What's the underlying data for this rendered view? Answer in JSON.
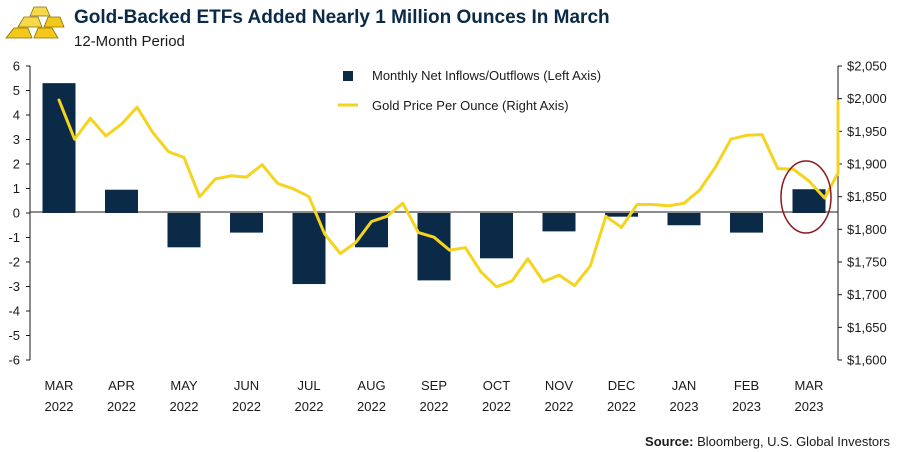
{
  "header": {
    "title": "Gold-Backed ETFs Added Nearly 1 Million Ounces In March",
    "subtitle": "12-Month Period"
  },
  "source": {
    "label": "Source:",
    "text": "Bloomberg, U.S. Global Investors"
  },
  "colors": {
    "bar": "#0b2a48",
    "line": "#f5d41f",
    "circle": "#8b1a1a",
    "logo": "#f2c81a"
  },
  "chart_data": {
    "type": "bar+line",
    "months": [
      {
        "top": "MAR",
        "bottom": "2022"
      },
      {
        "top": "APR",
        "bottom": "2022"
      },
      {
        "top": "MAY",
        "bottom": "2022"
      },
      {
        "top": "JUN",
        "bottom": "2022"
      },
      {
        "top": "JUL",
        "bottom": "2022"
      },
      {
        "top": "AUG",
        "bottom": "2022"
      },
      {
        "top": "SEP",
        "bottom": "2022"
      },
      {
        "top": "OCT",
        "bottom": "2022"
      },
      {
        "top": "NOV",
        "bottom": "2022"
      },
      {
        "top": "DEC",
        "bottom": "2022"
      },
      {
        "top": "JAN",
        "bottom": "2023"
      },
      {
        "top": "FEB",
        "bottom": "2023"
      },
      {
        "top": "MAR",
        "bottom": "2023"
      }
    ],
    "left_axis": {
      "ylim": [
        -6,
        6
      ],
      "ticks": [
        "6",
        "5",
        "4",
        "3",
        "2",
        "1",
        "0",
        "-1",
        "-2",
        "-3",
        "-4",
        "-5",
        "-6"
      ]
    },
    "right_axis": {
      "ylim": [
        1600,
        2050
      ],
      "ticks": [
        "$2,050",
        "$2,000",
        "$1,950",
        "$1,900",
        "$1,850",
        "$1,800",
        "$1,750",
        "$1,700",
        "$1,650",
        "$1,600"
      ]
    },
    "series": [
      {
        "name": "Monthly Net Inflows/Outflows (Left Axis)",
        "type": "bar",
        "axis": "left",
        "values": [
          5.3,
          0.95,
          -1.4,
          -0.8,
          -2.9,
          -1.4,
          -2.75,
          -1.85,
          -0.75,
          -0.15,
          -0.5,
          -0.8,
          0.97
        ]
      },
      {
        "name": "Gold Price Per Ounce (Right Axis)",
        "type": "line",
        "axis": "right",
        "x": [
          0,
          0.25,
          0.5,
          0.75,
          1,
          1.25,
          1.5,
          1.75,
          2,
          2.25,
          2.5,
          2.75,
          3,
          3.25,
          3.5,
          3.75,
          4,
          4.25,
          4.5,
          4.75,
          5,
          5.25,
          5.5,
          5.75,
          6,
          6.25,
          6.5,
          6.75,
          7,
          7.25,
          7.5,
          7.75,
          8,
          8.25,
          8.5,
          8.75,
          9,
          9.25,
          9.5,
          9.75,
          10,
          10.25,
          10.5,
          10.75,
          11,
          11.25,
          11.5,
          11.75,
          12,
          12.25,
          12.5,
          12.75
        ],
        "values": [
          1998,
          1938,
          1970,
          1943,
          1961,
          1987,
          1948,
          1919,
          1910,
          1850,
          1877,
          1882,
          1880,
          1899,
          1870,
          1862,
          1850,
          1793,
          1763,
          1780,
          1812,
          1820,
          1840,
          1795,
          1788,
          1768,
          1772,
          1735,
          1712,
          1721,
          1755,
          1720,
          1730,
          1714,
          1744,
          1820,
          1803,
          1838,
          1838,
          1836,
          1840,
          1860,
          1895,
          1938,
          1944,
          1945,
          1893,
          1892,
          1874,
          1848,
          1886,
          1996
        ]
      }
    ],
    "tail_values": [
      1988,
      1980
    ],
    "highlight": "circle around MAR 2023 bar"
  }
}
